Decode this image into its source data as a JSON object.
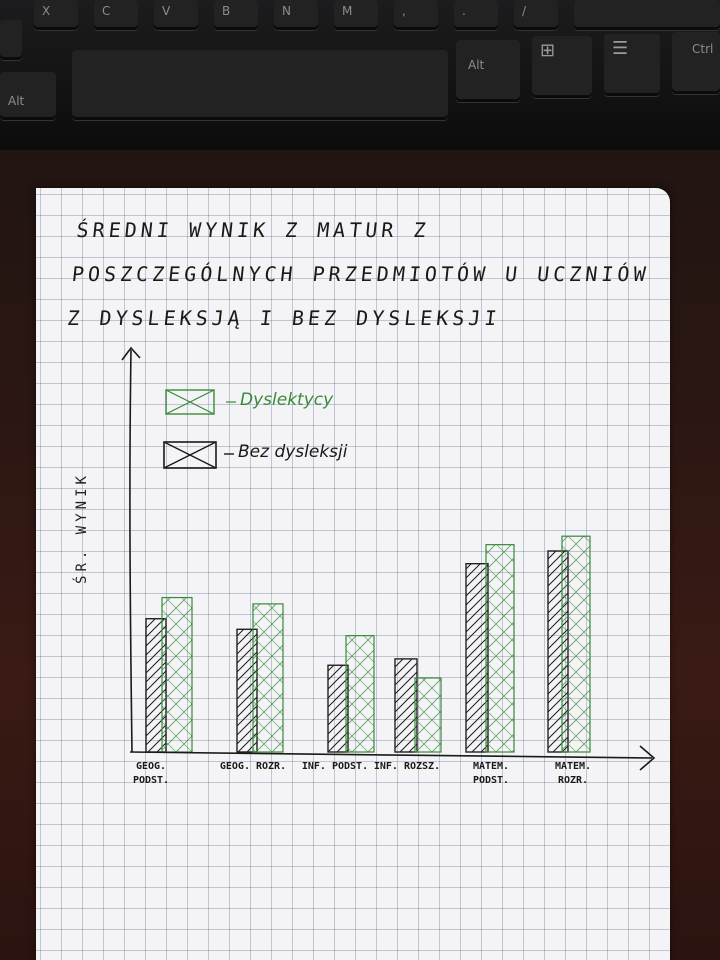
{
  "keyboard": {
    "keys": [
      "X",
      "C",
      "V",
      "B",
      "N",
      "M",
      ",",
      ".",
      "/",
      "Alt",
      "Alt",
      "Ctrl"
    ]
  },
  "chart_data": {
    "type": "bar",
    "title": "ŚREDNI WYNIK Z MATUR Z POSZCZEGÓLNYCH PRZEDMIOTÓW U UCZNIÓW Z DYSLEKSJĄ I BEZ DYSLEKSJI",
    "ylabel": "ŚR. WYNIK",
    "xlabel": "",
    "categories": [
      "GEOG. PODST.",
      "GEOG. ROZR.",
      "INF. PODST.",
      "INF. ROZSZ.",
      "MATEM. PODST.",
      "MATEM. ROZR."
    ],
    "series": [
      {
        "name": "Dyslektycy",
        "color": "#3a8a3a",
        "values": [
          7.3,
          7.0,
          5.5,
          3.5,
          9.8,
          10.2
        ]
      },
      {
        "name": "Bez dysleksji",
        "color": "#222222",
        "values": [
          6.3,
          5.8,
          4.1,
          4.4,
          8.9,
          9.5
        ]
      }
    ],
    "ylim": [
      0,
      19
    ],
    "legend_position": "top-left",
    "grid": true
  }
}
